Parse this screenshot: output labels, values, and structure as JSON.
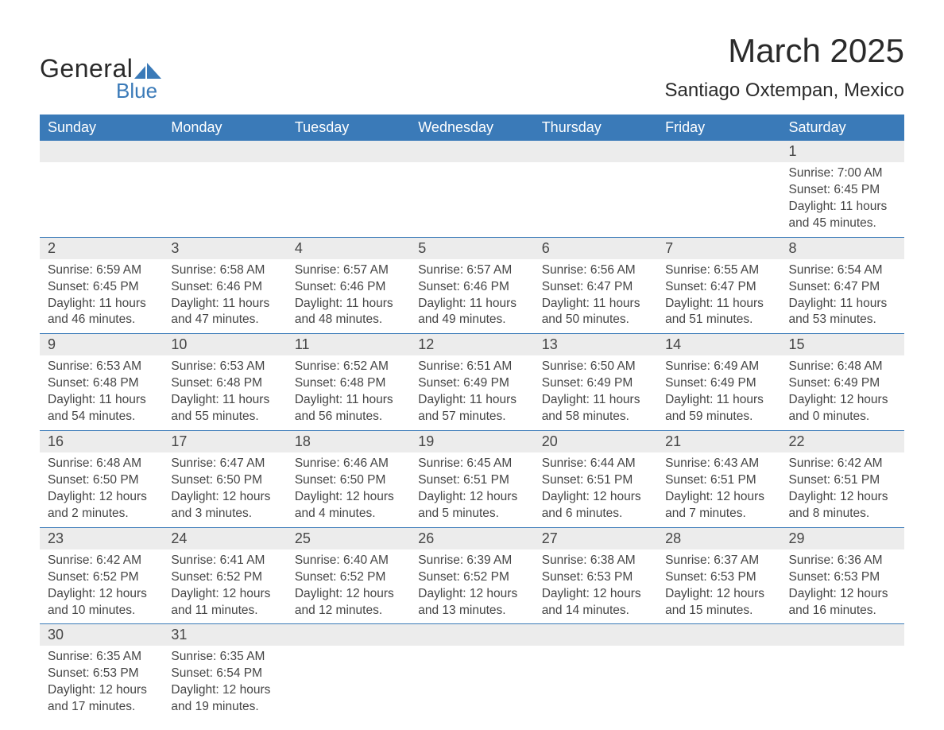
{
  "brand": {
    "line1": "General",
    "line2": "Blue",
    "accent": "#3a7ab8"
  },
  "title": "March 2025",
  "location": "Santiago Oxtempan, Mexico",
  "colors": {
    "header_bg": "#3a7ab8",
    "header_text": "#ffffff",
    "daynum_bg": "#ececec",
    "text": "#454545",
    "row_border": "#3a7ab8",
    "background": "#ffffff"
  },
  "typography": {
    "title_fontsize": 42,
    "location_fontsize": 24,
    "header_fontsize": 18,
    "daynum_fontsize": 18,
    "body_fontsize": 15.5
  },
  "day_headers": [
    "Sunday",
    "Monday",
    "Tuesday",
    "Wednesday",
    "Thursday",
    "Friday",
    "Saturday"
  ],
  "weeks": [
    [
      null,
      null,
      null,
      null,
      null,
      null,
      {
        "d": "1",
        "sr": "7:00 AM",
        "ss": "6:45 PM",
        "dl1": "Daylight: 11 hours",
        "dl2": "and 45 minutes."
      }
    ],
    [
      {
        "d": "2",
        "sr": "6:59 AM",
        "ss": "6:45 PM",
        "dl1": "Daylight: 11 hours",
        "dl2": "and 46 minutes."
      },
      {
        "d": "3",
        "sr": "6:58 AM",
        "ss": "6:46 PM",
        "dl1": "Daylight: 11 hours",
        "dl2": "and 47 minutes."
      },
      {
        "d": "4",
        "sr": "6:57 AM",
        "ss": "6:46 PM",
        "dl1": "Daylight: 11 hours",
        "dl2": "and 48 minutes."
      },
      {
        "d": "5",
        "sr": "6:57 AM",
        "ss": "6:46 PM",
        "dl1": "Daylight: 11 hours",
        "dl2": "and 49 minutes."
      },
      {
        "d": "6",
        "sr": "6:56 AM",
        "ss": "6:47 PM",
        "dl1": "Daylight: 11 hours",
        "dl2": "and 50 minutes."
      },
      {
        "d": "7",
        "sr": "6:55 AM",
        "ss": "6:47 PM",
        "dl1": "Daylight: 11 hours",
        "dl2": "and 51 minutes."
      },
      {
        "d": "8",
        "sr": "6:54 AM",
        "ss": "6:47 PM",
        "dl1": "Daylight: 11 hours",
        "dl2": "and 53 minutes."
      }
    ],
    [
      {
        "d": "9",
        "sr": "6:53 AM",
        "ss": "6:48 PM",
        "dl1": "Daylight: 11 hours",
        "dl2": "and 54 minutes."
      },
      {
        "d": "10",
        "sr": "6:53 AM",
        "ss": "6:48 PM",
        "dl1": "Daylight: 11 hours",
        "dl2": "and 55 minutes."
      },
      {
        "d": "11",
        "sr": "6:52 AM",
        "ss": "6:48 PM",
        "dl1": "Daylight: 11 hours",
        "dl2": "and 56 minutes."
      },
      {
        "d": "12",
        "sr": "6:51 AM",
        "ss": "6:49 PM",
        "dl1": "Daylight: 11 hours",
        "dl2": "and 57 minutes."
      },
      {
        "d": "13",
        "sr": "6:50 AM",
        "ss": "6:49 PM",
        "dl1": "Daylight: 11 hours",
        "dl2": "and 58 minutes."
      },
      {
        "d": "14",
        "sr": "6:49 AM",
        "ss": "6:49 PM",
        "dl1": "Daylight: 11 hours",
        "dl2": "and 59 minutes."
      },
      {
        "d": "15",
        "sr": "6:48 AM",
        "ss": "6:49 PM",
        "dl1": "Daylight: 12 hours",
        "dl2": "and 0 minutes."
      }
    ],
    [
      {
        "d": "16",
        "sr": "6:48 AM",
        "ss": "6:50 PM",
        "dl1": "Daylight: 12 hours",
        "dl2": "and 2 minutes."
      },
      {
        "d": "17",
        "sr": "6:47 AM",
        "ss": "6:50 PM",
        "dl1": "Daylight: 12 hours",
        "dl2": "and 3 minutes."
      },
      {
        "d": "18",
        "sr": "6:46 AM",
        "ss": "6:50 PM",
        "dl1": "Daylight: 12 hours",
        "dl2": "and 4 minutes."
      },
      {
        "d": "19",
        "sr": "6:45 AM",
        "ss": "6:51 PM",
        "dl1": "Daylight: 12 hours",
        "dl2": "and 5 minutes."
      },
      {
        "d": "20",
        "sr": "6:44 AM",
        "ss": "6:51 PM",
        "dl1": "Daylight: 12 hours",
        "dl2": "and 6 minutes."
      },
      {
        "d": "21",
        "sr": "6:43 AM",
        "ss": "6:51 PM",
        "dl1": "Daylight: 12 hours",
        "dl2": "and 7 minutes."
      },
      {
        "d": "22",
        "sr": "6:42 AM",
        "ss": "6:51 PM",
        "dl1": "Daylight: 12 hours",
        "dl2": "and 8 minutes."
      }
    ],
    [
      {
        "d": "23",
        "sr": "6:42 AM",
        "ss": "6:52 PM",
        "dl1": "Daylight: 12 hours",
        "dl2": "and 10 minutes."
      },
      {
        "d": "24",
        "sr": "6:41 AM",
        "ss": "6:52 PM",
        "dl1": "Daylight: 12 hours",
        "dl2": "and 11 minutes."
      },
      {
        "d": "25",
        "sr": "6:40 AM",
        "ss": "6:52 PM",
        "dl1": "Daylight: 12 hours",
        "dl2": "and 12 minutes."
      },
      {
        "d": "26",
        "sr": "6:39 AM",
        "ss": "6:52 PM",
        "dl1": "Daylight: 12 hours",
        "dl2": "and 13 minutes."
      },
      {
        "d": "27",
        "sr": "6:38 AM",
        "ss": "6:53 PM",
        "dl1": "Daylight: 12 hours",
        "dl2": "and 14 minutes."
      },
      {
        "d": "28",
        "sr": "6:37 AM",
        "ss": "6:53 PM",
        "dl1": "Daylight: 12 hours",
        "dl2": "and 15 minutes."
      },
      {
        "d": "29",
        "sr": "6:36 AM",
        "ss": "6:53 PM",
        "dl1": "Daylight: 12 hours",
        "dl2": "and 16 minutes."
      }
    ],
    [
      {
        "d": "30",
        "sr": "6:35 AM",
        "ss": "6:53 PM",
        "dl1": "Daylight: 12 hours",
        "dl2": "and 17 minutes."
      },
      {
        "d": "31",
        "sr": "6:35 AM",
        "ss": "6:54 PM",
        "dl1": "Daylight: 12 hours",
        "dl2": "and 19 minutes."
      },
      null,
      null,
      null,
      null,
      null
    ]
  ],
  "labels": {
    "sunrise_prefix": "Sunrise: ",
    "sunset_prefix": "Sunset: "
  }
}
